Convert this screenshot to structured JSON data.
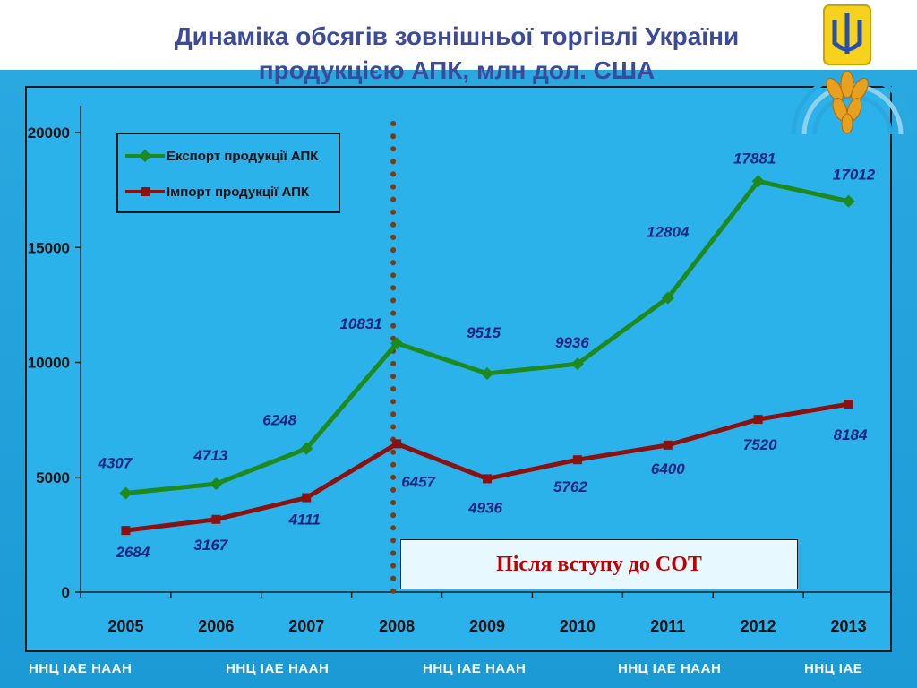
{
  "title_line1": "Динаміка обсягів зовнішньої торгівлі України",
  "title_line2": "продукцією АПК, млн дол. США",
  "legend": {
    "export_label": "Експорт продукції АПК",
    "import_label": "Імпорт продукції АПК"
  },
  "annotation": "Після вступу до СОТ",
  "footer": [
    "ННЦ ІАЕ  НААН",
    "ННЦ ІАЕ  НААН",
    "ННЦ ІАЕ  НААН",
    "ННЦ ІАЕ  НААН",
    "ННЦ ІАЕ"
  ],
  "colors": {
    "export": "#1e8a1e",
    "import": "#8b1010",
    "value_labels": "#1a237e",
    "wto_line": "#7a3b12"
  },
  "chart_data": {
    "type": "line",
    "categories": [
      "2005",
      "2006",
      "2007",
      "2008",
      "2009",
      "2010",
      "2011",
      "2012",
      "2013"
    ],
    "series": [
      {
        "name": "Експорт продукції АПК",
        "values": [
          4307,
          4713,
          6248,
          10831,
          9515,
          9936,
          12804,
          17881,
          17012
        ]
      },
      {
        "name": "Імпорт продукції АПК",
        "values": [
          2684,
          3167,
          4111,
          6457,
          4936,
          5762,
          6400,
          7520,
          8184
        ]
      }
    ],
    "ylim": [
      0,
      20000
    ],
    "yticks": [
      "0",
      "5000",
      "10000",
      "15000",
      "20000"
    ],
    "grid": false,
    "legend_position": "top-left",
    "marker_year": "2008"
  }
}
